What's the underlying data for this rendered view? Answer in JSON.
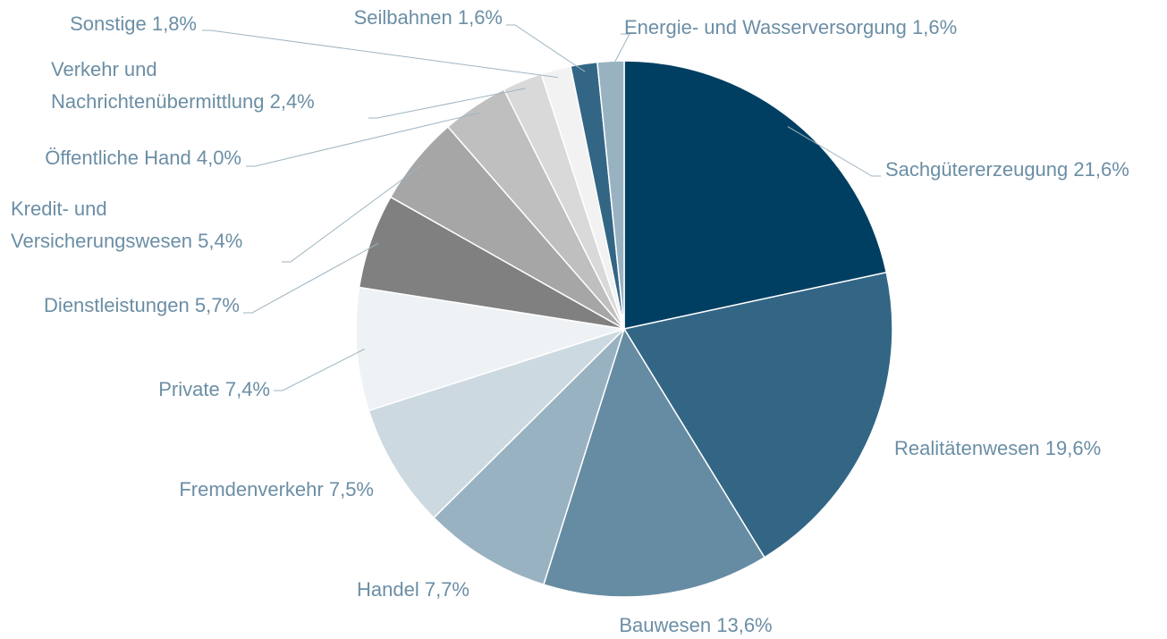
{
  "chart_data": {
    "type": "pie",
    "categories": [
      "Sachgütererzeugung",
      "Realitätenwesen",
      "Bauwesen",
      "Handel",
      "Fremdenverkehr",
      "Private",
      "Dienstleistungen",
      "Kredit- und Versicherungswesen",
      "Öffentliche Hand",
      "Verkehr und Nachrichtenübermittlung",
      "Sonstige",
      "Seilbahnen",
      "Energie- und Wasserversorgung"
    ],
    "values": [
      21.6,
      19.6,
      13.6,
      7.7,
      7.5,
      7.4,
      5.7,
      5.4,
      4.0,
      2.4,
      1.8,
      1.6,
      1.6
    ],
    "value_labels": [
      "21,6%",
      "19,6%",
      "13,6%",
      "7,7%",
      "7,5%",
      "7,4%",
      "5,7%",
      "5,4%",
      "4,0%",
      "2,4%",
      "1,8%",
      "1,6%",
      "1,6%"
    ],
    "colors": [
      "#003f62",
      "#336685",
      "#668ca3",
      "#99b2c2",
      "#ccd9e0",
      "#eef2f5",
      "#808080",
      "#a6a6a6",
      "#bfbfbf",
      "#d9d9d9",
      "#f2f2f2",
      "#336685",
      "#99b2c2"
    ]
  }
}
